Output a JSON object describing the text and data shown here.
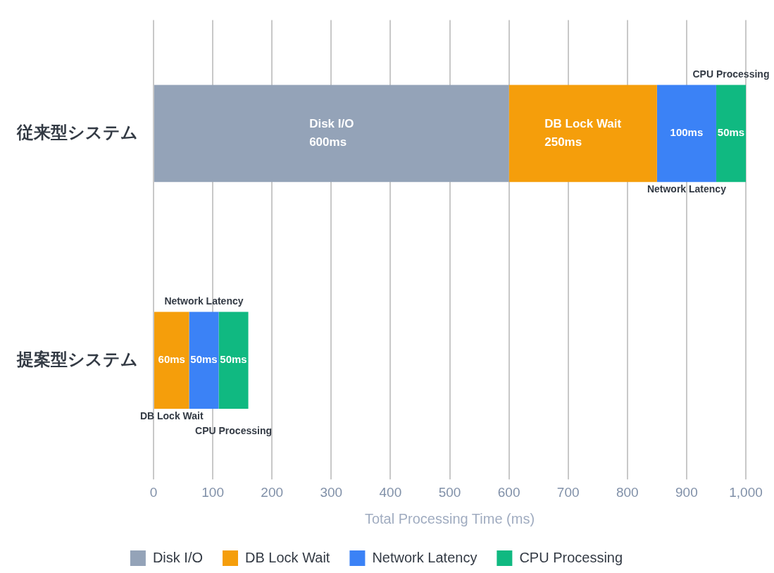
{
  "chart_data": {
    "type": "bar",
    "orientation": "horizontal",
    "stacked": true,
    "categories": [
      "従来型システム",
      "提案型システム"
    ],
    "series": [
      {
        "name": "Disk I/O",
        "color": "#94a3b8",
        "values": [
          600,
          null
        ],
        "value_labels": [
          "600ms",
          null
        ]
      },
      {
        "name": "DB Lock Wait",
        "color": "#f59e0b",
        "values": [
          250,
          60
        ],
        "value_labels": [
          "250ms",
          "60ms"
        ]
      },
      {
        "name": "Network Latency",
        "color": "#3b82f6",
        "values": [
          100,
          50
        ],
        "value_labels": [
          "100ms",
          "50ms"
        ]
      },
      {
        "name": "CPU Processing",
        "color": "#10b981",
        "values": [
          50,
          50
        ],
        "value_labels": [
          "50ms",
          "50ms"
        ]
      }
    ],
    "xlabel": "Total Processing Time (ms)",
    "xlim": [
      0,
      1000
    ],
    "xticks": [
      0,
      100,
      200,
      300,
      400,
      500,
      600,
      700,
      800,
      900,
      {
        "value": 1000,
        "label": "1,000"
      }
    ],
    "grid": "x",
    "legend": "bottom"
  }
}
